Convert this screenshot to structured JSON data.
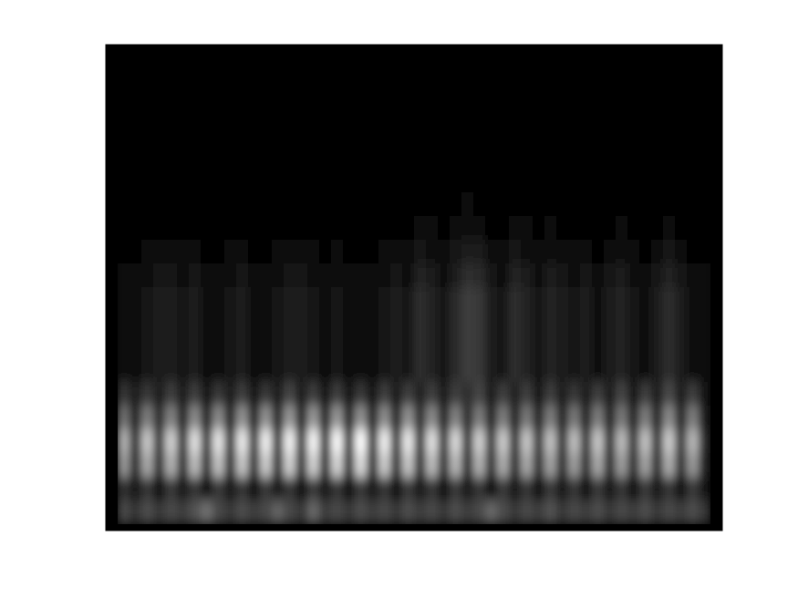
{
  "chart_data": {
    "type": "heatmap",
    "tick_labels": false,
    "cells": [
      [
        0.04,
        0.04,
        0.04,
        0.04,
        0.04,
        0.04,
        0.04,
        0.04,
        0.04,
        0.04,
        0.04,
        0.04,
        0.04,
        0.04,
        0.04,
        0.04,
        0.04,
        0.04,
        0.04,
        0.04,
        0.04,
        0.04,
        0.04,
        0.04,
        0.04,
        0.04,
        0.04,
        0.04,
        0.04,
        0.04,
        0.04,
        0.04,
        0.04,
        0.04,
        0.04,
        0.04,
        0.04,
        0.04,
        0.04,
        0.04,
        0.04,
        0.04,
        0.04,
        0.04,
        0.04,
        0.04,
        0.04,
        0.04,
        0.04,
        0.04
      ],
      [
        0.02,
        0.02,
        0.02,
        0.02,
        0.02,
        0.02,
        0.02,
        0.02,
        0.02,
        0.02,
        0.02,
        0.02,
        0.02,
        0.02,
        0.02,
        0.02,
        0.02,
        0.02,
        0.02,
        0.02,
        0.02,
        0.02,
        0.02,
        0.02,
        0.02,
        0.02,
        0.02,
        0.02,
        0.02,
        0.02,
        0.02,
        0.02,
        0.02,
        0.02,
        0.02,
        0.02,
        0.02,
        0.02,
        0.02,
        0.02,
        0.02,
        0.02,
        0.02,
        0.02,
        0.02,
        0.02,
        0.02,
        0.02,
        0.02,
        0.02
      ],
      [
        0.02,
        0.02,
        0.02,
        0.02,
        0.02,
        0.02,
        0.02,
        0.02,
        0.02,
        0.02,
        0.02,
        0.02,
        0.02,
        0.02,
        0.02,
        0.02,
        0.02,
        0.02,
        0.02,
        0.02,
        0.02,
        0.02,
        0.02,
        0.02,
        0.02,
        0.02,
        0.02,
        0.02,
        0.02,
        0.02,
        0.02,
        0.02,
        0.02,
        0.02,
        0.02,
        0.02,
        0.02,
        0.02,
        0.02,
        0.02,
        0.02,
        0.02,
        0.02,
        0.02,
        0.02,
        0.02,
        0.02,
        0.02,
        0.02,
        0.02
      ],
      [
        0.02,
        0.02,
        0.02,
        0.02,
        0.02,
        0.02,
        0.02,
        0.02,
        0.02,
        0.02,
        0.02,
        0.02,
        0.02,
        0.02,
        0.02,
        0.02,
        0.02,
        0.02,
        0.02,
        0.02,
        0.02,
        0.02,
        0.02,
        0.02,
        0.02,
        0.02,
        0.02,
        0.02,
        0.02,
        0.02,
        0.02,
        0.02,
        0.02,
        0.02,
        0.02,
        0.02,
        0.02,
        0.02,
        0.02,
        0.02,
        0.02,
        0.02,
        0.02,
        0.02,
        0.02,
        0.02,
        0.02,
        0.02,
        0.02,
        0.02
      ],
      [
        0.02,
        0.02,
        0.02,
        0.02,
        0.02,
        0.02,
        0.02,
        0.02,
        0.02,
        0.02,
        0.02,
        0.02,
        0.02,
        0.02,
        0.02,
        0.02,
        0.02,
        0.02,
        0.02,
        0.02,
        0.02,
        0.02,
        0.02,
        0.02,
        0.02,
        0.02,
        0.02,
        0.02,
        0.02,
        0.02,
        0.02,
        0.02,
        0.02,
        0.02,
        0.02,
        0.02,
        0.02,
        0.02,
        0.02,
        0.02,
        0.02,
        0.02,
        0.02,
        0.02,
        0.02,
        0.02,
        0.02,
        0.02,
        0.02,
        0.02
      ],
      [
        0.02,
        0.02,
        0.03,
        0.03,
        0.02,
        0.02,
        0.03,
        0.02,
        0.02,
        0.02,
        0.03,
        0.02,
        0.02,
        0.02,
        0.03,
        0.02,
        0.02,
        0.02,
        0.02,
        0.02,
        0.02,
        0.02,
        0.02,
        0.02,
        0.02,
        0.03,
        0.02,
        0.02,
        0.02,
        0.03,
        0.03,
        0.02,
        0.02,
        0.02,
        0.02,
        0.02,
        0.02,
        0.02,
        0.02,
        0.02,
        0.02,
        0.02,
        0.02,
        0.02,
        0.02,
        0.02,
        0.03,
        0.02,
        0.02,
        0.02
      ],
      [
        0.02,
        0.02,
        0.03,
        0.03,
        0.03,
        0.02,
        0.03,
        0.02,
        0.02,
        0.02,
        0.03,
        0.02,
        0.02,
        0.02,
        0.03,
        0.03,
        0.02,
        0.02,
        0.02,
        0.02,
        0.02,
        0.02,
        0.02,
        0.03,
        0.02,
        0.04,
        0.03,
        0.02,
        0.03,
        0.05,
        0.04,
        0.02,
        0.02,
        0.03,
        0.03,
        0.02,
        0.03,
        0.03,
        0.02,
        0.02,
        0.02,
        0.02,
        0.03,
        0.02,
        0.02,
        0.02,
        0.04,
        0.03,
        0.02,
        0.02
      ],
      [
        0.02,
        0.02,
        0.03,
        0.04,
        0.04,
        0.03,
        0.04,
        0.02,
        0.02,
        0.03,
        0.04,
        0.02,
        0.02,
        0.03,
        0.04,
        0.04,
        0.03,
        0.02,
        0.03,
        0.02,
        0.02,
        0.02,
        0.03,
        0.04,
        0.03,
        0.06,
        0.05,
        0.03,
        0.05,
        0.08,
        0.07,
        0.04,
        0.03,
        0.06,
        0.05,
        0.03,
        0.05,
        0.04,
        0.03,
        0.04,
        0.02,
        0.04,
        0.05,
        0.03,
        0.02,
        0.04,
        0.06,
        0.04,
        0.02,
        0.02
      ],
      [
        0.03,
        0.04,
        0.05,
        0.07,
        0.06,
        0.05,
        0.07,
        0.04,
        0.03,
        0.05,
        0.07,
        0.04,
        0.03,
        0.05,
        0.07,
        0.06,
        0.05,
        0.04,
        0.05,
        0.03,
        0.04,
        0.03,
        0.05,
        0.07,
        0.05,
        0.1,
        0.08,
        0.05,
        0.09,
        0.13,
        0.12,
        0.06,
        0.05,
        0.1,
        0.08,
        0.05,
        0.08,
        0.07,
        0.05,
        0.06,
        0.04,
        0.06,
        0.08,
        0.05,
        0.04,
        0.06,
        0.1,
        0.07,
        0.04,
        0.03
      ],
      [
        0.05,
        0.06,
        0.08,
        0.11,
        0.09,
        0.08,
        0.11,
        0.06,
        0.05,
        0.08,
        0.11,
        0.06,
        0.05,
        0.08,
        0.11,
        0.09,
        0.08,
        0.06,
        0.08,
        0.05,
        0.06,
        0.05,
        0.08,
        0.11,
        0.08,
        0.15,
        0.12,
        0.08,
        0.14,
        0.2,
        0.18,
        0.09,
        0.08,
        0.15,
        0.12,
        0.08,
        0.12,
        0.11,
        0.08,
        0.09,
        0.06,
        0.09,
        0.12,
        0.08,
        0.06,
        0.09,
        0.15,
        0.11,
        0.06,
        0.05
      ],
      [
        0.06,
        0.08,
        0.1,
        0.14,
        0.12,
        0.1,
        0.14,
        0.08,
        0.06,
        0.1,
        0.14,
        0.08,
        0.06,
        0.1,
        0.14,
        0.12,
        0.1,
        0.08,
        0.1,
        0.06,
        0.08,
        0.06,
        0.1,
        0.14,
        0.1,
        0.2,
        0.16,
        0.1,
        0.18,
        0.26,
        0.24,
        0.12,
        0.1,
        0.2,
        0.16,
        0.1,
        0.16,
        0.14,
        0.1,
        0.12,
        0.08,
        0.12,
        0.16,
        0.1,
        0.08,
        0.12,
        0.2,
        0.14,
        0.08,
        0.06
      ],
      [
        0.06,
        0.08,
        0.1,
        0.14,
        0.12,
        0.1,
        0.14,
        0.08,
        0.06,
        0.1,
        0.14,
        0.08,
        0.06,
        0.1,
        0.14,
        0.12,
        0.1,
        0.08,
        0.1,
        0.06,
        0.08,
        0.06,
        0.1,
        0.14,
        0.1,
        0.2,
        0.16,
        0.1,
        0.18,
        0.26,
        0.24,
        0.12,
        0.1,
        0.2,
        0.16,
        0.1,
        0.16,
        0.14,
        0.1,
        0.12,
        0.08,
        0.12,
        0.16,
        0.1,
        0.08,
        0.12,
        0.2,
        0.14,
        0.08,
        0.06
      ],
      [
        0.06,
        0.08,
        0.1,
        0.14,
        0.12,
        0.1,
        0.14,
        0.08,
        0.06,
        0.1,
        0.14,
        0.08,
        0.06,
        0.1,
        0.14,
        0.12,
        0.1,
        0.08,
        0.1,
        0.06,
        0.08,
        0.06,
        0.1,
        0.14,
        0.1,
        0.2,
        0.16,
        0.1,
        0.18,
        0.26,
        0.24,
        0.12,
        0.1,
        0.2,
        0.16,
        0.1,
        0.16,
        0.14,
        0.1,
        0.12,
        0.08,
        0.12,
        0.16,
        0.1,
        0.08,
        0.12,
        0.2,
        0.14,
        0.08,
        0.06
      ],
      [
        0.06,
        0.08,
        0.1,
        0.14,
        0.12,
        0.1,
        0.14,
        0.08,
        0.06,
        0.1,
        0.14,
        0.08,
        0.06,
        0.1,
        0.14,
        0.12,
        0.1,
        0.08,
        0.1,
        0.06,
        0.08,
        0.06,
        0.1,
        0.14,
        0.1,
        0.2,
        0.16,
        0.1,
        0.18,
        0.26,
        0.24,
        0.12,
        0.1,
        0.2,
        0.16,
        0.1,
        0.16,
        0.14,
        0.1,
        0.12,
        0.08,
        0.12,
        0.16,
        0.1,
        0.08,
        0.12,
        0.2,
        0.14,
        0.08,
        0.06
      ],
      [
        0.22,
        0.12,
        0.24,
        0.14,
        0.26,
        0.12,
        0.26,
        0.1,
        0.24,
        0.12,
        0.26,
        0.1,
        0.24,
        0.12,
        0.28,
        0.12,
        0.26,
        0.1,
        0.26,
        0.1,
        0.24,
        0.1,
        0.26,
        0.12,
        0.26,
        0.16,
        0.26,
        0.12,
        0.26,
        0.2,
        0.28,
        0.12,
        0.26,
        0.16,
        0.26,
        0.1,
        0.26,
        0.12,
        0.24,
        0.12,
        0.26,
        0.12,
        0.28,
        0.1,
        0.26,
        0.14,
        0.3,
        0.14,
        0.26,
        0.1
      ],
      [
        0.45,
        0.15,
        0.5,
        0.18,
        0.52,
        0.16,
        0.55,
        0.15,
        0.55,
        0.16,
        0.58,
        0.15,
        0.58,
        0.16,
        0.6,
        0.15,
        0.6,
        0.16,
        0.6,
        0.15,
        0.58,
        0.16,
        0.56,
        0.15,
        0.58,
        0.18,
        0.55,
        0.15,
        0.52,
        0.18,
        0.5,
        0.15,
        0.5,
        0.16,
        0.48,
        0.15,
        0.5,
        0.16,
        0.48,
        0.15,
        0.5,
        0.16,
        0.48,
        0.15,
        0.5,
        0.16,
        0.55,
        0.15,
        0.5,
        0.12
      ],
      [
        0.7,
        0.2,
        0.78,
        0.22,
        0.82,
        0.2,
        0.88,
        0.22,
        0.9,
        0.2,
        0.92,
        0.22,
        0.94,
        0.2,
        0.95,
        0.22,
        0.96,
        0.2,
        0.98,
        0.22,
        1.0,
        0.2,
        0.94,
        0.22,
        0.92,
        0.2,
        0.88,
        0.22,
        0.85,
        0.2,
        0.82,
        0.22,
        0.8,
        0.2,
        0.78,
        0.22,
        0.76,
        0.2,
        0.75,
        0.22,
        0.78,
        0.2,
        0.74,
        0.22,
        0.76,
        0.2,
        0.8,
        0.22,
        0.72,
        0.18
      ],
      [
        0.6,
        0.18,
        0.66,
        0.2,
        0.7,
        0.18,
        0.74,
        0.2,
        0.76,
        0.18,
        0.78,
        0.2,
        0.8,
        0.18,
        0.82,
        0.2,
        0.82,
        0.18,
        0.84,
        0.2,
        0.86,
        0.18,
        0.8,
        0.2,
        0.78,
        0.18,
        0.74,
        0.2,
        0.72,
        0.18,
        0.7,
        0.2,
        0.68,
        0.18,
        0.66,
        0.2,
        0.64,
        0.18,
        0.62,
        0.2,
        0.66,
        0.18,
        0.62,
        0.2,
        0.64,
        0.18,
        0.68,
        0.2,
        0.6,
        0.16
      ],
      [
        0.2,
        0.1,
        0.22,
        0.08,
        0.24,
        0.1,
        0.22,
        0.08,
        0.24,
        0.1,
        0.22,
        0.08,
        0.24,
        0.1,
        0.22,
        0.08,
        0.24,
        0.1,
        0.22,
        0.08,
        0.24,
        0.1,
        0.22,
        0.08,
        0.24,
        0.1,
        0.22,
        0.08,
        0.24,
        0.1,
        0.22,
        0.08,
        0.24,
        0.1,
        0.22,
        0.08,
        0.24,
        0.1,
        0.22,
        0.08,
        0.24,
        0.1,
        0.22,
        0.08,
        0.24,
        0.1,
        0.22,
        0.08,
        0.24,
        0.1
      ],
      [
        0.3,
        0.22,
        0.32,
        0.24,
        0.3,
        0.26,
        0.34,
        0.45,
        0.3,
        0.24,
        0.32,
        0.26,
        0.3,
        0.4,
        0.3,
        0.24,
        0.42,
        0.26,
        0.3,
        0.24,
        0.32,
        0.26,
        0.3,
        0.24,
        0.32,
        0.26,
        0.3,
        0.24,
        0.32,
        0.26,
        0.3,
        0.42,
        0.32,
        0.24,
        0.3,
        0.26,
        0.34,
        0.24,
        0.3,
        0.26,
        0.32,
        0.24,
        0.3,
        0.26,
        0.32,
        0.24,
        0.3,
        0.26,
        0.32,
        0.24
      ]
    ]
  }
}
